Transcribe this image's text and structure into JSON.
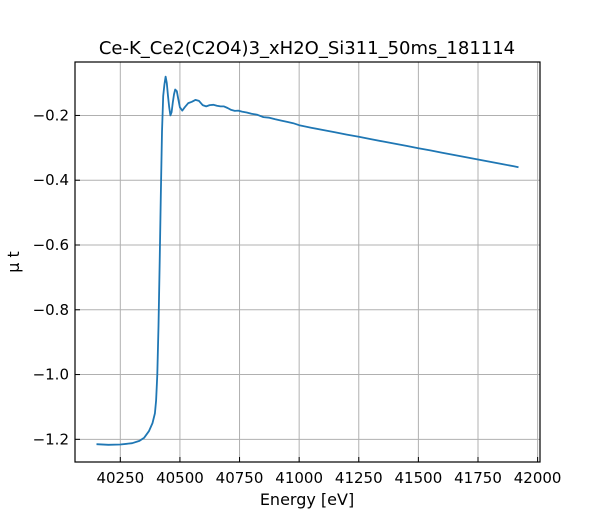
{
  "chart_data": {
    "type": "line",
    "title": "Ce-K_Ce2(C2O4)3_xH2O_Si311_50ms_181114",
    "xlabel": "Energy [eV]",
    "ylabel": "μ t",
    "xlim": [
      40060,
      42010
    ],
    "ylim": [
      -1.27,
      -0.035
    ],
    "x_ticks": [
      40250,
      40500,
      40750,
      41000,
      41250,
      41500,
      41750,
      42000
    ],
    "x_tick_labels": [
      "40250",
      "40500",
      "40750",
      "41000",
      "41250",
      "41500",
      "41750",
      "42000"
    ],
    "y_ticks": [
      -1.2,
      -1.0,
      -0.8,
      -0.6,
      -0.4,
      -0.2
    ],
    "y_tick_labels": [
      "−1.2",
      "−1.0",
      "−0.8",
      "−0.6",
      "−0.4",
      "−0.2"
    ],
    "grid": true,
    "series": [
      {
        "color": "#1f77b4",
        "x": [
          40150,
          40200,
          40250,
          40300,
          40330,
          40350,
          40370,
          40385,
          40395,
          40400,
          40405,
          40410,
          40415,
          40420,
          40425,
          40430,
          40435,
          40440,
          40445,
          40450,
          40455,
          40460,
          40465,
          40470,
          40475,
          40480,
          40487,
          40493,
          40500,
          40510,
          40520,
          40535,
          40550,
          40565,
          40580,
          40595,
          40610,
          40625,
          40640,
          40655,
          40670,
          40685,
          40700,
          40715,
          40730,
          40745,
          40760,
          40780,
          40800,
          40825,
          40850,
          40875,
          40900,
          40925,
          40950,
          40975,
          41000,
          41050,
          41100,
          41150,
          41200,
          41250,
          41300,
          41350,
          41400,
          41450,
          41500,
          41550,
          41600,
          41650,
          41700,
          41750,
          41800,
          41850,
          41900,
          41920
        ],
        "y": [
          -1.215,
          -1.217,
          -1.216,
          -1.212,
          -1.205,
          -1.195,
          -1.175,
          -1.15,
          -1.12,
          -1.08,
          -1.0,
          -0.85,
          -0.65,
          -0.45,
          -0.25,
          -0.14,
          -0.105,
          -0.08,
          -0.1,
          -0.14,
          -0.175,
          -0.2,
          -0.19,
          -0.16,
          -0.135,
          -0.12,
          -0.125,
          -0.15,
          -0.175,
          -0.185,
          -0.175,
          -0.162,
          -0.158,
          -0.152,
          -0.155,
          -0.168,
          -0.172,
          -0.168,
          -0.167,
          -0.17,
          -0.172,
          -0.172,
          -0.177,
          -0.183,
          -0.186,
          -0.185,
          -0.188,
          -0.191,
          -0.195,
          -0.198,
          -0.205,
          -0.207,
          -0.212,
          -0.216,
          -0.22,
          -0.224,
          -0.23,
          -0.238,
          -0.245,
          -0.252,
          -0.259,
          -0.266,
          -0.273,
          -0.28,
          -0.287,
          -0.294,
          -0.301,
          -0.308,
          -0.315,
          -0.322,
          -0.329,
          -0.336,
          -0.343,
          -0.35,
          -0.357,
          -0.36
        ]
      }
    ]
  }
}
